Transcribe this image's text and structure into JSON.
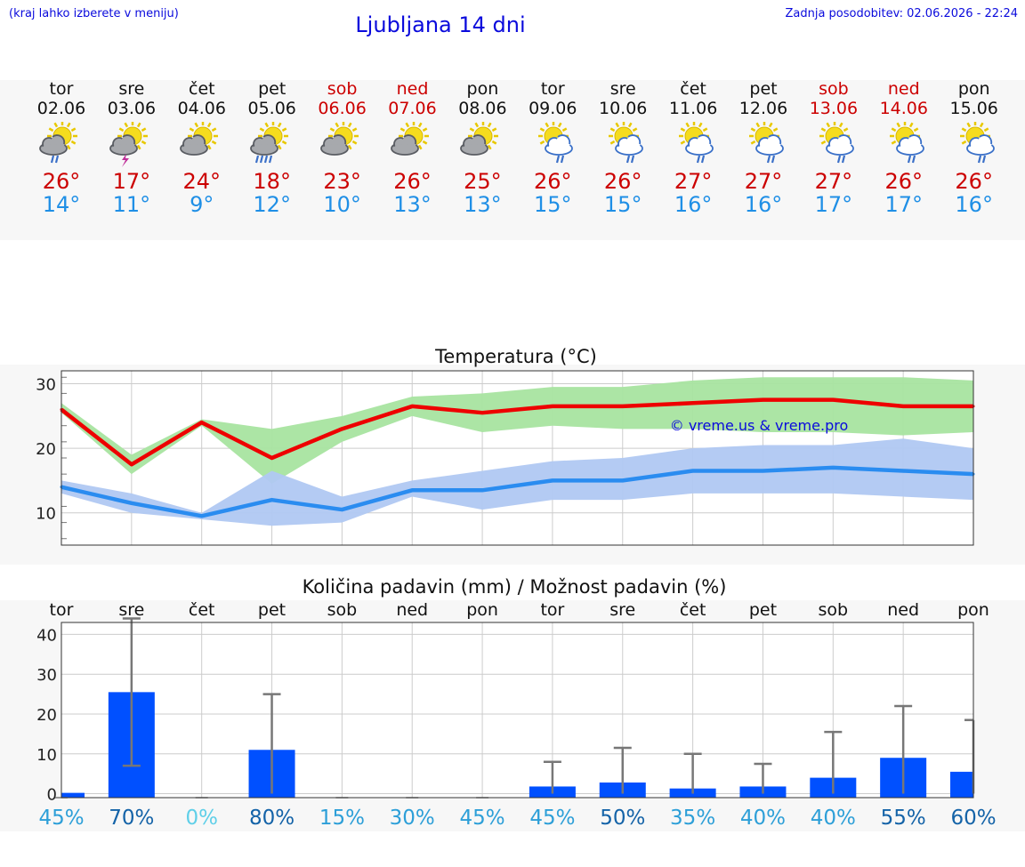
{
  "header": {
    "left_note": "(kraj lahko izberete v meniju)",
    "title": "Ljubljana 14 dni",
    "updated": "Zadnja posodobitev: 02.06.2026 - 22:24"
  },
  "forecast": {
    "days": [
      {
        "name": "tor",
        "date": "02.06",
        "weekend": false,
        "icon": "sun-cloud-rain",
        "tmax": "26°",
        "tmin": "14°"
      },
      {
        "name": "sre",
        "date": "03.06",
        "weekend": false,
        "icon": "sun-cloud-thunder",
        "tmax": "17°",
        "tmin": "11°"
      },
      {
        "name": "čet",
        "date": "04.06",
        "weekend": false,
        "icon": "sun-cloud",
        "tmax": "24°",
        "tmin": "9°"
      },
      {
        "name": "pet",
        "date": "05.06",
        "weekend": false,
        "icon": "sun-cloud-heavy-rain",
        "tmax": "18°",
        "tmin": "12°"
      },
      {
        "name": "sob",
        "date": "06.06",
        "weekend": true,
        "icon": "sun-cloud",
        "tmax": "23°",
        "tmin": "10°"
      },
      {
        "name": "ned",
        "date": "07.06",
        "weekend": true,
        "icon": "sun-cloud",
        "tmax": "26°",
        "tmin": "13°"
      },
      {
        "name": "pon",
        "date": "08.06",
        "weekend": false,
        "icon": "sun-cloud",
        "tmax": "25°",
        "tmin": "13°"
      },
      {
        "name": "tor",
        "date": "09.06",
        "weekend": false,
        "icon": "sun-outline-cloud-rain",
        "tmax": "26°",
        "tmin": "15°"
      },
      {
        "name": "sre",
        "date": "10.06",
        "weekend": false,
        "icon": "sun-outline-cloud-rain",
        "tmax": "26°",
        "tmin": "15°"
      },
      {
        "name": "čet",
        "date": "11.06",
        "weekend": false,
        "icon": "sun-outline-cloud-rain",
        "tmax": "27°",
        "tmin": "16°"
      },
      {
        "name": "pet",
        "date": "12.06",
        "weekend": false,
        "icon": "sun-outline-cloud-rain",
        "tmax": "27°",
        "tmin": "16°"
      },
      {
        "name": "sob",
        "date": "13.06",
        "weekend": true,
        "icon": "sun-outline-cloud-rain",
        "tmax": "27°",
        "tmin": "17°"
      },
      {
        "name": "ned",
        "date": "14.06",
        "weekend": true,
        "icon": "sun-outline-cloud-rain",
        "tmax": "26°",
        "tmin": "17°"
      },
      {
        "name": "pon",
        "date": "15.06",
        "weekend": false,
        "icon": "sun-outline-cloud-rain",
        "tmax": "26°",
        "tmin": "16°"
      }
    ]
  },
  "colors": {
    "max_line": "#ee0000",
    "max_band": "#a8e4a0",
    "min_line": "#2a8cf0",
    "min_band": "#b0c8f2",
    "bar": "#0050ff",
    "whisker": "#777777",
    "pct_light": "#5fcfe8",
    "pct_mid": "#2d9fd8",
    "pct_dark": "#1463a8"
  },
  "chart_data": [
    {
      "type": "line",
      "title": "Temperatura (°C)",
      "watermark": "© vreme.us & vreme.pro",
      "ylim": [
        5,
        32
      ],
      "yticks": [
        10,
        20,
        30
      ],
      "grid": true,
      "x": [
        0,
        1,
        2,
        3,
        4,
        5,
        6,
        7,
        8,
        9,
        10,
        11,
        12,
        13
      ],
      "series": [
        {
          "role": "max",
          "values": [
            26,
            17.5,
            24,
            18.5,
            23,
            26.5,
            25.5,
            26.5,
            26.5,
            27,
            27.5,
            27.5,
            26.5,
            26.5
          ],
          "band_low": [
            25.5,
            16,
            23.5,
            14.5,
            21,
            25,
            22.5,
            23.5,
            23,
            23,
            22.5,
            22.5,
            22,
            22.5
          ],
          "band_high": [
            27,
            19,
            24.5,
            23,
            25,
            28,
            28.5,
            29.5,
            29.5,
            30.5,
            31,
            31,
            31,
            30.5
          ]
        },
        {
          "role": "min",
          "values": [
            14,
            11.5,
            9.5,
            12,
            10.5,
            13.5,
            13.5,
            15,
            15,
            16.5,
            16.5,
            17,
            16.5,
            16
          ],
          "band_low": [
            13,
            10,
            9,
            8,
            8.5,
            12.5,
            10.5,
            12,
            12,
            13,
            13,
            13,
            12.5,
            12
          ],
          "band_high": [
            15,
            13,
            10,
            16.5,
            12.5,
            15,
            16.5,
            18,
            18.5,
            20,
            20.5,
            20.5,
            21.5,
            20
          ]
        }
      ]
    },
    {
      "type": "bar",
      "title": "Količina padavin (mm) / Možnost padavin (%)",
      "categories": [
        "tor",
        "sre",
        "čet",
        "pet",
        "sob",
        "ned",
        "pon",
        "tor",
        "sre",
        "čet",
        "pet",
        "sob",
        "ned",
        "pon"
      ],
      "ylim": [
        -1,
        43
      ],
      "yticks": [
        0,
        10,
        20,
        30,
        40
      ],
      "values": [
        0.2,
        25.5,
        0,
        11,
        0,
        0,
        0,
        1.8,
        2.8,
        1.3,
        1.8,
        4,
        9,
        5.5
      ],
      "err_low": [
        0,
        7,
        0,
        0,
        0,
        0,
        0,
        0,
        0,
        0,
        0,
        0,
        0,
        0
      ],
      "err_high": [
        0,
        44,
        0,
        25,
        0,
        0,
        0,
        8,
        11.5,
        10,
        7.5,
        15.5,
        22,
        18.5
      ],
      "probabilities": [
        "45%",
        "70%",
        "0%",
        "80%",
        "15%",
        "30%",
        "45%",
        "45%",
        "50%",
        "35%",
        "40%",
        "40%",
        "55%",
        "60%"
      ],
      "probability_values": [
        45,
        70,
        0,
        80,
        15,
        30,
        45,
        45,
        50,
        35,
        40,
        40,
        55,
        60
      ]
    }
  ]
}
